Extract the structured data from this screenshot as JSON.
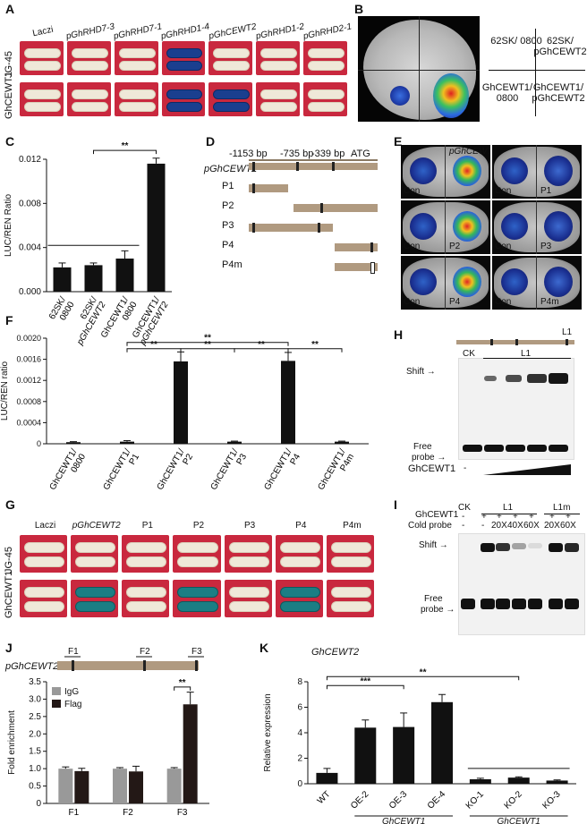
{
  "panels": {
    "A": {
      "letter": "A",
      "columns": [
        "Laczi",
        "pGhRHD7-3",
        "pGhRHD7-1",
        "pGhRHD1-4",
        "pGhCEWT2",
        "pGhRHD1-2",
        "pGhRHD2-1"
      ],
      "rows": [
        "JG-45",
        "GhCEWT1"
      ]
    },
    "B": {
      "letter": "B",
      "labels": [
        "62SK/ 0800",
        "62SK/ pGhCEWT2",
        "GhCEWT1/ 0800",
        "GhCEWT1/ pGhCEWT2"
      ]
    },
    "C": {
      "letter": "C",
      "sig": "**"
    },
    "D": {
      "letter": "D",
      "positions": [
        "-1153 bp",
        "-735 bp",
        "-339 bp",
        "ATG"
      ],
      "promoter": "pGhCEWT2",
      "fragments": [
        "P1",
        "P2",
        "P3",
        "P4",
        "P4m"
      ]
    },
    "E": {
      "letter": "E",
      "pairs": [
        [
          "Con",
          "pGhCEWT2"
        ],
        [
          "Con",
          "P1"
        ],
        [
          "Con",
          "P2"
        ],
        [
          "Con",
          "P3"
        ],
        [
          "Con",
          "P4"
        ],
        [
          "Con",
          "P4m"
        ]
      ]
    },
    "F": {
      "letter": "F",
      "sig": [
        "**",
        "**",
        "**",
        "**",
        "**"
      ]
    },
    "G": {
      "letter": "G",
      "columns": [
        "Laczi",
        "pGhCEWT2",
        "P1",
        "P2",
        "P3",
        "P4",
        "P4m"
      ],
      "rows": [
        "JG-45",
        "GhCEWT1"
      ]
    },
    "H": {
      "letter": "H",
      "probe": "L1",
      "lanes": [
        "CK",
        "L1"
      ],
      "shift": "Shift",
      "free1": "Free",
      "free2": "probe",
      "protein": "GhCEWT1",
      "minus": "-"
    },
    "I": {
      "letter": "I",
      "ck": "CK",
      "l1": "L1",
      "l1m": "L1m",
      "row1": "GhCEWT1",
      "row2": "Cold probe",
      "signs": [
        "-",
        "+",
        "+",
        "+",
        "+",
        "+",
        "+"
      ],
      "cold": [
        "-",
        "-",
        "20X",
        "40X",
        "60X",
        "20X",
        "60X"
      ],
      "shift": "Shift",
      "free1": "Free",
      "free2": "probe"
    },
    "J": {
      "letter": "J",
      "promoter": "pGhCEWT2",
      "sites": [
        "F1",
        "F2",
        "F3"
      ],
      "sig": "**"
    },
    "K": {
      "letter": "K",
      "gene": "GhCEWT2",
      "group": "GhCEWT1",
      "sig": [
        "***",
        "**"
      ]
    }
  },
  "chart_data": [
    {
      "panel": "C",
      "type": "bar",
      "categories": [
        "62SK/ 0800",
        "62SK/ pGhCEWT2",
        "GhCEWT1/ 0800",
        "GhCEWT1/ pGhCEWT2"
      ],
      "values": [
        0.0022,
        0.0024,
        0.003,
        0.0116
      ],
      "errors": [
        0.0004,
        0.0002,
        0.0007,
        0.0005
      ],
      "ylabel": "LUC/REN Ratio",
      "ylim": [
        0,
        0.012
      ],
      "yticks": [
        "0.000",
        "0.004",
        "0.008",
        "0.012"
      ]
    },
    {
      "panel": "F",
      "type": "bar",
      "categories": [
        "GhCEWT1/ 0800",
        "GhCEWT1/ P1",
        "GhCEWT1/ P2",
        "GhCEWT1/ P3",
        "GhCEWT1/ P4",
        "GhCEWT1/ P4m"
      ],
      "values": [
        3e-05,
        4e-05,
        0.00156,
        4e-05,
        0.00157,
        4e-05
      ],
      "errors": [
        1e-05,
        2e-05,
        0.00018,
        1e-05,
        0.00016,
        1e-05
      ],
      "ylabel": "LUC/REN ratio",
      "ylim": [
        0,
        0.002
      ],
      "yticks": [
        "0",
        "0.0004",
        "0.0008",
        "0.0012",
        "0.0016",
        "0.0020"
      ]
    },
    {
      "panel": "J",
      "type": "bar",
      "categories": [
        "F1",
        "F2",
        "F3"
      ],
      "series": [
        {
          "name": "IgG",
          "values": [
            1.0,
            1.0,
            1.0
          ],
          "errors": [
            0.05,
            0.03,
            0.03
          ],
          "color": "#999999"
        },
        {
          "name": "Flag",
          "values": [
            0.93,
            0.92,
            2.85
          ],
          "errors": [
            0.08,
            0.15,
            0.35
          ],
          "color": "#231816"
        }
      ],
      "ylabel": "Fold enrichment",
      "ylim": [
        0,
        3.5
      ],
      "yticks": [
        "0",
        "0.5",
        "1.0",
        "1.5",
        "2.0",
        "2.5",
        "3.0",
        "3.5"
      ]
    },
    {
      "panel": "K",
      "type": "bar",
      "categories": [
        "WT",
        "OE-2",
        "OE-3",
        "OE-4",
        "KO-1",
        "KO-2",
        "KO-3"
      ],
      "values": [
        0.85,
        4.4,
        4.45,
        6.4,
        0.35,
        0.48,
        0.25
      ],
      "errors": [
        0.35,
        0.6,
        1.1,
        0.6,
        0.08,
        0.06,
        0.05
      ],
      "ylabel": "Relative expression",
      "ylim": [
        0,
        8
      ],
      "yticks": [
        "0",
        "2",
        "4",
        "6",
        "8"
      ]
    }
  ]
}
